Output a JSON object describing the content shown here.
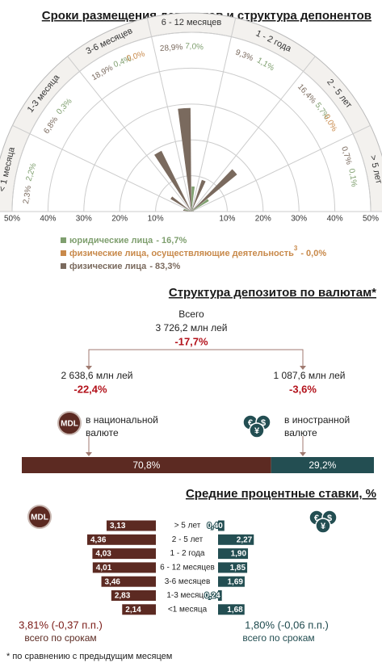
{
  "rose": {
    "title": "Сроки размещения депозитов и структура депонентов",
    "sectors": [
      "< 1 месяца",
      "1-3 месяца",
      "3-6 месяцев",
      "6 - 12 месяцев",
      "1 - 2 года",
      "2 - 5 лет",
      "> 5 лет"
    ],
    "rlim": [
      0,
      50
    ],
    "rticks": [
      {
        "value": 10,
        "label": "10%"
      },
      {
        "value": 20,
        "label": "20%"
      },
      {
        "value": 30,
        "label": "30%"
      },
      {
        "value": 40,
        "label": "40%"
      },
      {
        "value": 50,
        "label": "50%"
      }
    ],
    "series": [
      {
        "name": "юридические лица",
        "total": "- 16,7%",
        "color": "#7f9f6f",
        "values": [
          2.2,
          0.3,
          0.4,
          7.0,
          1.1,
          5.7,
          0.1
        ],
        "value_labels": [
          "2,2%",
          "0,3%",
          "0,4%",
          "7,0%",
          "1,1%",
          "5,7%",
          "0,1%"
        ]
      },
      {
        "name": "физические лица, осуществляющие деятельность",
        "note": "3",
        "total": "- 0,0%",
        "color": "#c8894a",
        "values": [
          null,
          null,
          0,
          null,
          null,
          0,
          null
        ],
        "value_labels": [
          null,
          null,
          "0,0%",
          null,
          null,
          "0,0%",
          null
        ]
      },
      {
        "name": "физические лица",
        "total": "- 83,3%",
        "color": "#7a6a5e",
        "values": [
          2.3,
          6.8,
          18.9,
          28.9,
          9.3,
          16.4,
          0.7
        ],
        "value_labels": [
          "2,3%",
          "6,8%",
          "18,9%",
          "28,9%",
          "9,3%",
          "16,4%",
          "0,7%"
        ]
      }
    ]
  },
  "currency": {
    "title": "Структура депозитов по валютам*",
    "total_label": "Всего",
    "total": "3 726,2 млн лей",
    "total_change": "-17,7%",
    "national": {
      "amount": "2 638,6 млн лей",
      "change": "-22,4%",
      "label": "в национальной валюте"
    },
    "foreign": {
      "amount": "1 087,6 млн лей",
      "change": "-3,6%",
      "label": "в иностранной валюте"
    },
    "mdl_icon": "MDL",
    "fx_icon": [
      "€",
      "$",
      "¥"
    ],
    "shares": {
      "values": [
        70.8,
        29.2
      ],
      "value_labels": [
        "70,8%",
        "29,2%"
      ],
      "colors": [
        "#5c2a22",
        "#234e52"
      ]
    }
  },
  "rates": {
    "title": "Средние процентные ставки, %",
    "categories": [
      "> 5 лет",
      "2 - 5 лет",
      "1 - 2 года",
      "6 - 12 месяцев",
      "3-6 месяцев",
      "1-3 месяца",
      "<1 месяца"
    ],
    "series": [
      {
        "color": "#5c2a22",
        "values": [
          3.13,
          4.36,
          4.03,
          4.01,
          3.46,
          2.83,
          2.14
        ],
        "value_labels": [
          "3,13",
          "4,36",
          "4,03",
          "4,01",
          "3,46",
          "2,83",
          "2,14"
        ]
      },
      {
        "color": "#234e52",
        "values": [
          0.4,
          2.27,
          1.9,
          1.85,
          1.69,
          0.24,
          1.68
        ],
        "value_labels": [
          "0,40",
          "2,27",
          "1,90",
          "1,85",
          "1,69",
          "0,24",
          "1,68"
        ]
      }
    ],
    "mdl_total": "3,81% (-0,37 п.п.)",
    "fx_total": "1,80% (-0,06 п.п.)",
    "total_caption": "всего по срокам"
  },
  "footnote": "* по сравнению с предыдущим месяцем"
}
